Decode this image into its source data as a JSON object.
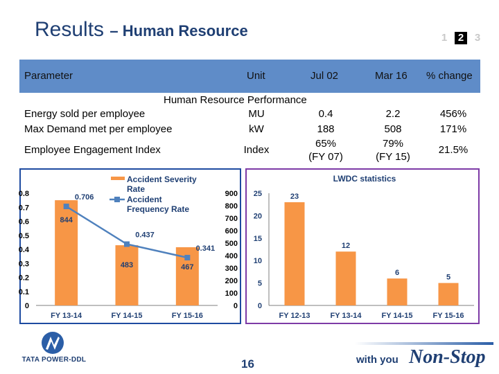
{
  "slide": {
    "title": "Results",
    "subtitle": "– Human Resource",
    "pager": [
      "1",
      "2",
      "3"
    ],
    "active_page": "2",
    "page_number": "16"
  },
  "table": {
    "headers": {
      "parameter": "Parameter",
      "unit": "Unit",
      "base": "Jul 02",
      "current": "Mar 16",
      "change": "% change"
    },
    "section_title": "Human Resource Performance",
    "rows": [
      {
        "parameter": "Energy sold per employee",
        "unit": "MU",
        "base": "0.4",
        "current": "2.2",
        "change": "456%"
      },
      {
        "parameter": "Max Demand met per employee",
        "unit": "kW",
        "base": "188",
        "current": "508",
        "change": "171%"
      },
      {
        "parameter": "Employee Engagement Index",
        "unit": "Index",
        "base": "65%",
        "base_note": "(FY 07)",
        "current": "79%",
        "current_note": "(FY 15)",
        "change": "21.5%"
      }
    ]
  },
  "chart_data": [
    {
      "type": "bar",
      "categories": [
        "FY 13-14",
        "FY 14-15",
        "FY 15-16"
      ],
      "series": [
        {
          "name": "Accident Severity Rate",
          "kind": "bar",
          "axis": "right",
          "values": [
            844,
            483,
            467
          ]
        },
        {
          "name": "Accident Frequency Rate",
          "kind": "line",
          "axis": "left",
          "values": [
            0.706,
            0.437,
            0.341
          ]
        }
      ],
      "left_axis": {
        "ylim": [
          0,
          0.8
        ],
        "ticks": [
          "0",
          "0.1",
          "0.2",
          "0.3",
          "0.4",
          "0.5",
          "0.6",
          "0.7",
          "0.8"
        ]
      },
      "right_axis": {
        "ylim": [
          0,
          900
        ],
        "ticks": [
          "0",
          "100",
          "200",
          "300",
          "400",
          "500",
          "600",
          "700",
          "800",
          "900"
        ]
      },
      "legend": "top",
      "colors": {
        "bar": "#f79646",
        "line": "#4f81bd"
      }
    },
    {
      "type": "bar",
      "title": "LWDC statistics",
      "categories": [
        "FY 12-13",
        "FY 13-14",
        "FY 14-15",
        "FY 15-16"
      ],
      "values": [
        23,
        12,
        6,
        5
      ],
      "ylim": [
        0,
        25
      ],
      "ticks": [
        "0",
        "5",
        "10",
        "15",
        "20",
        "25"
      ],
      "colors": {
        "bar": "#f79646"
      }
    }
  ],
  "branding": {
    "logo_text": "TATA POWER-DDL",
    "tagline_prefix": "with you",
    "tagline_brand": "Non-Stop"
  },
  "colors": {
    "title": "#1f3f73",
    "header_band": "#5f8cc8",
    "left_chart_border": "#1d4aa0",
    "right_chart_border": "#7d3aa6"
  }
}
